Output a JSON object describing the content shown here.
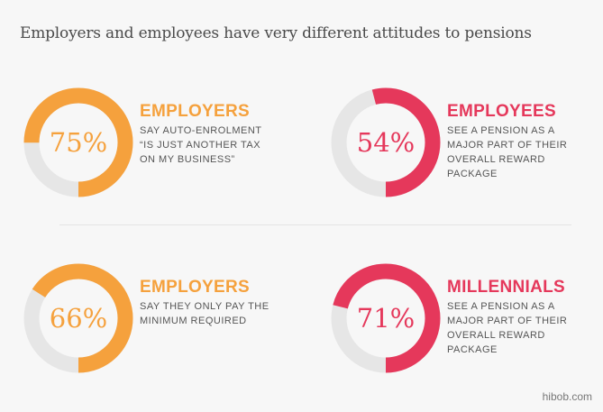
{
  "title": "Employers and employees have very different attitudes to pensions",
  "credit": "hibob.com",
  "colors": {
    "employers": "#f5a13d",
    "employees": "#e5385b",
    "track": "#e6e6e6"
  },
  "chart_data": {
    "type": "donut",
    "items": [
      {
        "value": 75,
        "label": "75%",
        "heading": "EMPLOYERS",
        "description": "SAY AUTO-ENROLMENT “IS JUST ANOTHER TAX ON MY BUSINESS”",
        "color": "#f5a13d"
      },
      {
        "value": 54,
        "label": "54%",
        "heading": "EMPLOYEES",
        "description": "SEE A PENSION AS A MAJOR PART OF THEIR OVERALL REWARD PACKAGE",
        "color": "#e5385b"
      },
      {
        "value": 66,
        "label": "66%",
        "heading": "EMPLOYERS",
        "description": "SAY THEY ONLY PAY THE MINIMUM REQUIRED",
        "color": "#f5a13d"
      },
      {
        "value": 71,
        "label": "71%",
        "heading": "MILLENNIALS",
        "description": "SEE A PENSION AS A MAJOR PART OF THEIR OVERALL REWARD PACKAGE",
        "color": "#e5385b"
      }
    ]
  }
}
